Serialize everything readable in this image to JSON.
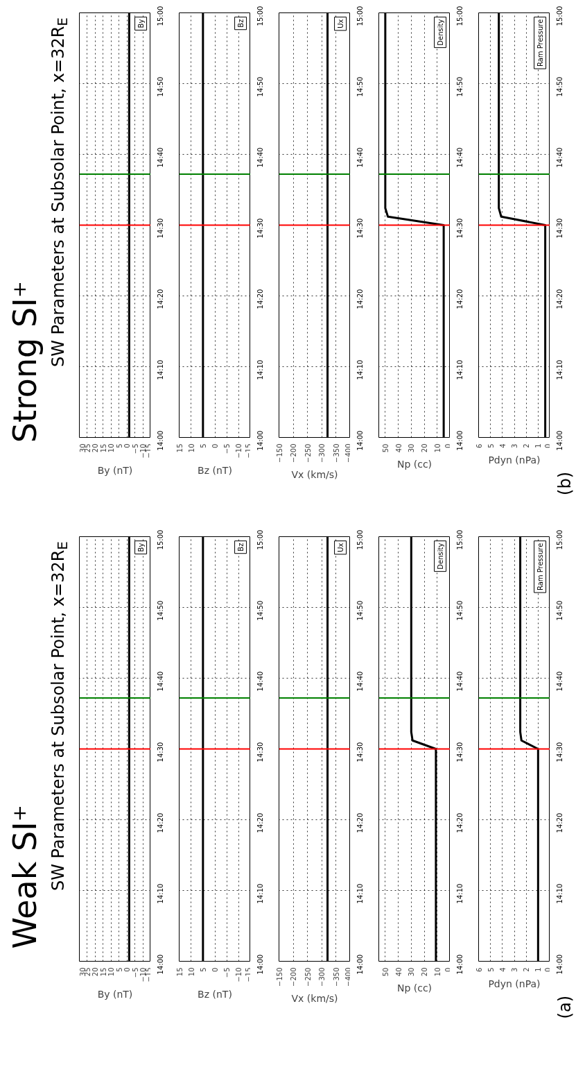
{
  "chart_data": [
    {
      "type": "line",
      "title": "Weak SI⁺",
      "subtitle": "SW Parameters at Subsolar Point, x=32R$_{E}$",
      "xlabel": "By (nT)",
      "ylim": [
        14,
        15
      ],
      "yticks": [
        {
          "value": 14,
          "label": "14:00"
        },
        {
          "value": 14.1667,
          "label": "14:10"
        },
        {
          "value": 14.3333,
          "label": "14:20"
        },
        {
          "value": 14.5,
          "label": "14:30"
        },
        {
          "value": 14.6667,
          "label": "14:40"
        },
        {
          "value": 14.8333,
          "label": "14:50"
        },
        {
          "value": 15,
          "label": "15:00"
        }
      ],
      "xlim": [
        30,
        -15
      ],
      "xticks": [
        30,
        25,
        20,
        15,
        10,
        5,
        0,
        -5,
        -10,
        -15
      ],
      "grid": true,
      "legend": "top right",
      "series": [
        {
          "name": "By",
          "color": "#000000",
          "x": [
            -1.4,
            -1.4
          ],
          "values": [
            14,
            15
          ]
        }
      ],
      "ref_lines": [
        {
          "axis": "y",
          "value": 14.5,
          "color": "#ff0000"
        },
        {
          "axis": "y",
          "value": 14.62,
          "color": "#008000"
        }
      ]
    },
    {
      "type": "line",
      "xlabel": "Bz (nT)",
      "ylim": [
        14,
        15
      ],
      "yticks": [
        {
          "value": 14,
          "label": "14:00"
        },
        {
          "value": 14.1667,
          "label": "14:10"
        },
        {
          "value": 14.3333,
          "label": "14:20"
        },
        {
          "value": 14.5,
          "label": "14:30"
        },
        {
          "value": 14.6667,
          "label": "14:40"
        },
        {
          "value": 14.8333,
          "label": "14:50"
        },
        {
          "value": 15,
          "label": "15:00"
        }
      ],
      "xlim": [
        15,
        -15
      ],
      "xticks": [
        15,
        10,
        5,
        0,
        -5,
        -10,
        -15
      ],
      "grid": true,
      "legend": "top right",
      "series": [
        {
          "name": "Bz",
          "color": "#000000",
          "x": [
            5,
            5
          ],
          "values": [
            14,
            15
          ]
        }
      ],
      "ref_lines": [
        {
          "axis": "y",
          "value": 14.5,
          "color": "#ff0000"
        },
        {
          "axis": "y",
          "value": 14.62,
          "color": "#008000"
        }
      ]
    },
    {
      "type": "line",
      "xlabel": "Vx (km/s)",
      "ylim": [
        14,
        15
      ],
      "yticks": [
        {
          "value": 14,
          "label": "14:00"
        },
        {
          "value": 14.1667,
          "label": "14:10"
        },
        {
          "value": 14.3333,
          "label": "14:20"
        },
        {
          "value": 14.5,
          "label": "14:30"
        },
        {
          "value": 14.6667,
          "label": "14:40"
        },
        {
          "value": 14.8333,
          "label": "14:50"
        },
        {
          "value": 15,
          "label": "15:00"
        }
      ],
      "xlim": [
        -150,
        -400
      ],
      "xticks": [
        -150,
        -200,
        -250,
        -300,
        -350,
        -400
      ],
      "grid": true,
      "legend": "top right",
      "series": [
        {
          "name": "Ux",
          "color": "#000000",
          "x": [
            -320,
            -320
          ],
          "values": [
            14,
            15
          ]
        }
      ],
      "ref_lines": [
        {
          "axis": "y",
          "value": 14.5,
          "color": "#ff0000"
        },
        {
          "axis": "y",
          "value": 14.62,
          "color": "#008000"
        }
      ]
    },
    {
      "type": "line",
      "xlabel": "Np (cc)",
      "ylim": [
        14,
        15
      ],
      "yticks": [
        {
          "value": 14,
          "label": "14:00"
        },
        {
          "value": 14.1667,
          "label": "14:10"
        },
        {
          "value": 14.3333,
          "label": "14:20"
        },
        {
          "value": 14.5,
          "label": "14:30"
        },
        {
          "value": 14.6667,
          "label": "14:40"
        },
        {
          "value": 14.8333,
          "label": "14:50"
        },
        {
          "value": 15,
          "label": "15:00"
        }
      ],
      "xlim": [
        55,
        0
      ],
      "xticks": [
        50,
        40,
        30,
        20,
        10,
        0
      ],
      "grid": true,
      "legend": "top right",
      "series": [
        {
          "name": "Density",
          "color": "#000000",
          "x": [
            11,
            11,
            29,
            30,
            30
          ],
          "values": [
            14,
            14.5,
            14.52,
            14.54,
            15
          ]
        }
      ],
      "ref_lines": [
        {
          "axis": "y",
          "value": 14.5,
          "color": "#ff0000"
        },
        {
          "axis": "y",
          "value": 14.62,
          "color": "#008000"
        }
      ]
    },
    {
      "type": "line",
      "xlabel": "Pdyn (nPa)",
      "annotations": [
        "(a)"
      ],
      "ylim": [
        14,
        15
      ],
      "yticks": [
        {
          "value": 14,
          "label": "14:00"
        },
        {
          "value": 14.1667,
          "label": "14:10"
        },
        {
          "value": 14.3333,
          "label": "14:20"
        },
        {
          "value": 14.5,
          "label": "14:30"
        },
        {
          "value": 14.6667,
          "label": "14:40"
        },
        {
          "value": 14.8333,
          "label": "14:50"
        },
        {
          "value": 15,
          "label": "15:00"
        }
      ],
      "xlim": [
        6,
        0
      ],
      "xticks": [
        6,
        5,
        4,
        3,
        2,
        1,
        0
      ],
      "grid": true,
      "legend": "top right",
      "series": [
        {
          "name": "Ram Pressure",
          "color": "#000000",
          "x": [
            1,
            1,
            2.4,
            2.5,
            2.5
          ],
          "values": [
            14,
            14.5,
            14.52,
            14.54,
            15
          ]
        }
      ],
      "ref_lines": [
        {
          "axis": "y",
          "value": 14.5,
          "color": "#ff0000"
        },
        {
          "axis": "y",
          "value": 14.62,
          "color": "#008000"
        }
      ]
    },
    {
      "type": "line",
      "title": "Strong SI⁺",
      "subtitle": "SW Parameters at Subsolar Point, x=32R$_{E}$",
      "xlabel": "By (nT)",
      "ylim": [
        14,
        15
      ],
      "yticks": [
        {
          "value": 14,
          "label": "14:00"
        },
        {
          "value": 14.1667,
          "label": "14:10"
        },
        {
          "value": 14.3333,
          "label": "14:20"
        },
        {
          "value": 14.5,
          "label": "14:30"
        },
        {
          "value": 14.6667,
          "label": "14:40"
        },
        {
          "value": 14.8333,
          "label": "14:50"
        },
        {
          "value": 15,
          "label": "15:00"
        }
      ],
      "xlim": [
        30,
        -15
      ],
      "xticks": [
        30,
        25,
        20,
        15,
        10,
        5,
        0,
        -5,
        -10,
        -15
      ],
      "grid": true,
      "legend": "top right",
      "series": [
        {
          "name": "By",
          "color": "#000000",
          "x": [
            -1.4,
            -1.4
          ],
          "values": [
            14,
            15
          ]
        }
      ],
      "ref_lines": [
        {
          "axis": "y",
          "value": 14.5,
          "color": "#ff0000"
        },
        {
          "axis": "y",
          "value": 14.62,
          "color": "#008000"
        }
      ]
    },
    {
      "type": "line",
      "xlabel": "Bz (nT)",
      "ylim": [
        14,
        15
      ],
      "yticks": [
        {
          "value": 14,
          "label": "14:00"
        },
        {
          "value": 14.1667,
          "label": "14:10"
        },
        {
          "value": 14.3333,
          "label": "14:20"
        },
        {
          "value": 14.5,
          "label": "14:30"
        },
        {
          "value": 14.6667,
          "label": "14:40"
        },
        {
          "value": 14.8333,
          "label": "14:50"
        },
        {
          "value": 15,
          "label": "15:00"
        }
      ],
      "xlim": [
        15,
        -15
      ],
      "xticks": [
        15,
        10,
        5,
        0,
        -5,
        -10,
        -15
      ],
      "grid": true,
      "legend": "top right",
      "series": [
        {
          "name": "Bz",
          "color": "#000000",
          "x": [
            5,
            5
          ],
          "values": [
            14,
            15
          ]
        }
      ],
      "ref_lines": [
        {
          "axis": "y",
          "value": 14.5,
          "color": "#ff0000"
        },
        {
          "axis": "y",
          "value": 14.62,
          "color": "#008000"
        }
      ]
    },
    {
      "type": "line",
      "xlabel": "Vx (km/s)",
      "ylim": [
        14,
        15
      ],
      "yticks": [
        {
          "value": 14,
          "label": "14:00"
        },
        {
          "value": 14.1667,
          "label": "14:10"
        },
        {
          "value": 14.3333,
          "label": "14:20"
        },
        {
          "value": 14.5,
          "label": "14:30"
        },
        {
          "value": 14.6667,
          "label": "14:40"
        },
        {
          "value": 14.8333,
          "label": "14:50"
        },
        {
          "value": 15,
          "label": "15:00"
        }
      ],
      "xlim": [
        -150,
        -400
      ],
      "xticks": [
        -150,
        -200,
        -250,
        -300,
        -350,
        -400
      ],
      "grid": true,
      "legend": "top right",
      "series": [
        {
          "name": "Ux",
          "color": "#000000",
          "x": [
            -320,
            -320
          ],
          "values": [
            14,
            15
          ]
        }
      ],
      "ref_lines": [
        {
          "axis": "y",
          "value": 14.5,
          "color": "#ff0000"
        },
        {
          "axis": "y",
          "value": 14.62,
          "color": "#008000"
        }
      ]
    },
    {
      "type": "line",
      "xlabel": "Np (cc)",
      "ylim": [
        14,
        15
      ],
      "yticks": [
        {
          "value": 14,
          "label": "14:00"
        },
        {
          "value": 14.1667,
          "label": "14:10"
        },
        {
          "value": 14.3333,
          "label": "14:20"
        },
        {
          "value": 14.5,
          "label": "14:30"
        },
        {
          "value": 14.6667,
          "label": "14:40"
        },
        {
          "value": 14.8333,
          "label": "14:50"
        },
        {
          "value": 15,
          "label": "15:00"
        }
      ],
      "xlim": [
        55,
        0
      ],
      "xticks": [
        50,
        40,
        30,
        20,
        10,
        0
      ],
      "grid": true,
      "legend": "top right",
      "series": [
        {
          "name": "Density",
          "color": "#000000",
          "x": [
            5,
            5,
            48,
            50,
            50
          ],
          "values": [
            14,
            14.5,
            14.52,
            14.54,
            15
          ]
        }
      ],
      "ref_lines": [
        {
          "axis": "y",
          "value": 14.5,
          "color": "#ff0000"
        },
        {
          "axis": "y",
          "value": 14.62,
          "color": "#008000"
        }
      ]
    },
    {
      "type": "line",
      "xlabel": "Pdyn (nPa)",
      "annotations": [
        "(b)"
      ],
      "ylim": [
        14,
        15
      ],
      "yticks": [
        {
          "value": 14,
          "label": "14:00"
        },
        {
          "value": 14.1667,
          "label": "14:10"
        },
        {
          "value": 14.3333,
          "label": "14:20"
        },
        {
          "value": 14.5,
          "label": "14:30"
        },
        {
          "value": 14.6667,
          "label": "14:40"
        },
        {
          "value": 14.8333,
          "label": "14:50"
        },
        {
          "value": 15,
          "label": "15:00"
        }
      ],
      "xlim": [
        6,
        0
      ],
      "xticks": [
        6,
        5,
        4,
        3,
        2,
        1,
        0
      ],
      "grid": true,
      "legend": "top right",
      "series": [
        {
          "name": "Ram Pressure",
          "color": "#000000",
          "x": [
            0.4,
            0.4,
            4.1,
            4.3,
            4.3
          ],
          "values": [
            14,
            14.5,
            14.52,
            14.54,
            15
          ]
        }
      ],
      "ref_lines": [
        {
          "axis": "y",
          "value": 14.5,
          "color": "#ff0000"
        },
        {
          "axis": "y",
          "value": 14.62,
          "color": "#008000"
        }
      ]
    }
  ]
}
